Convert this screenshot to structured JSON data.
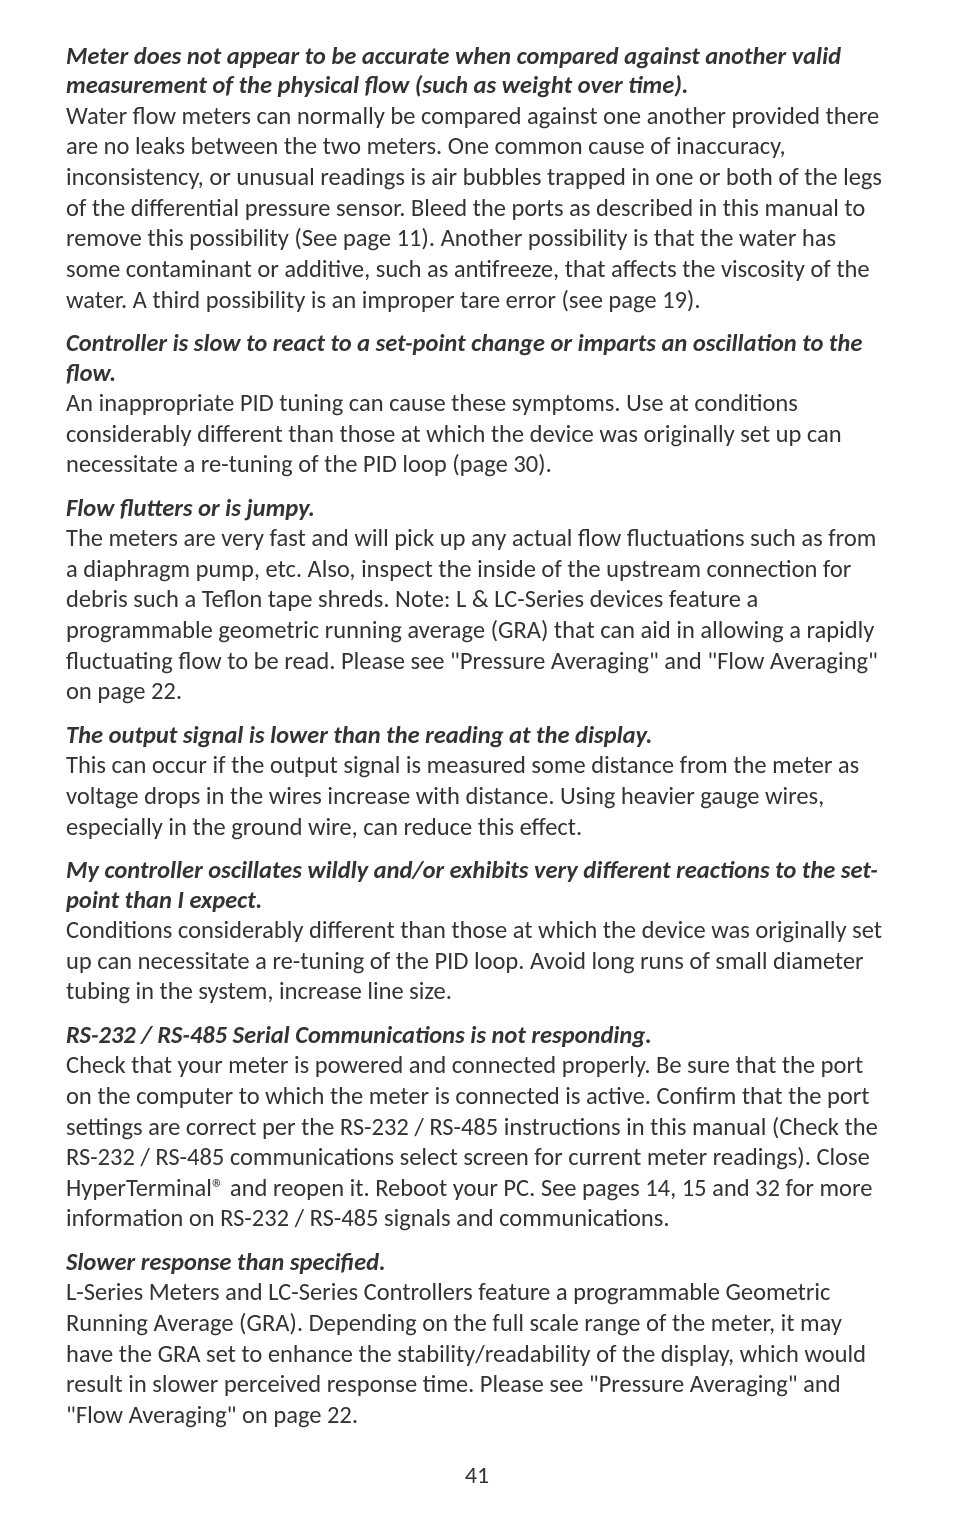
{
  "sections": [
    {
      "heading": "Meter does not appear to be accurate when compared against another valid measurement of the physical flow (such as weight over time).",
      "body": "Water flow meters can normally be compared against one another provided there are no leaks between the two meters. One common cause of inaccuracy, inconsistency, or unusual readings is air bubbles trapped in one or both of the legs of the differential pressure sensor. Bleed the ports as described in this manual to remove this possibility (See page 11). Another possibility is that the water has some contaminant or additive, such as antifreeze, that affects the viscosity of the water. A third possibility is an improper tare error (see page 19)."
    },
    {
      "heading": "Controller is slow to react to a set-point change or imparts an oscillation to the flow.",
      "body": "An inappropriate PID tuning can cause these symptoms. Use at conditions considerably different than those at which the device was originally set up can necessitate a re-tuning of the PID loop (page 30)."
    },
    {
      "heading": "Flow flutters or is jumpy.",
      "body": "The meters are very fast and will pick up any actual flow fluctuations such as from a diaphragm pump, etc. Also, inspect the inside of the upstream connection for debris such a Teflon tape shreds. Note: L & LC-Series devices feature a programmable geometric running average (GRA) that can aid in allowing a rapidly fluctuating flow to be read. Please see \"Pressure Averaging\" and \"Flow Averaging\" on page 22."
    },
    {
      "heading": "The output signal is lower than the reading at the display.",
      "body": "This can occur if the output signal is measured some distance from the meter as voltage drops in the wires increase with distance. Using heavier gauge wires, especially in the ground wire, can reduce this effect."
    },
    {
      "heading": "My controller oscillates wildly and/or exhibits very different reactions to the set-point than I expect.",
      "body": "Conditions considerably different than those at which the device was originally set up can necessitate a re-tuning of the PID loop. Avoid long runs of small diameter tubing in the system, increase line size."
    },
    {
      "heading": "RS-232 / RS-485 Serial Communications is not responding.",
      "body": "Check that your meter is powered and connected properly. Be sure that the port on the computer to which the meter is connected is active. Confirm that the port settings are correct per the RS-232 / RS-485 instructions in this manual (Check the RS-232 / RS-485 communications select screen for current meter readings). Close HyperTerminal® and reopen it. Reboot your PC. See pages 14, 15 and 32 for more information on RS-232 / RS-485 signals and communications."
    },
    {
      "heading": "Slower response than specified.",
      "body": "L-Series Meters and LC-Series Controllers feature a programmable Geometric Running Average (GRA). Depending on the full scale range of the meter, it may have the GRA set to enhance the stability/readability of the display, which would result in slower perceived response time. Please see \"Pressure Averaging\" and \"Flow Averaging\" on page 22."
    }
  ],
  "page_number": "41"
}
